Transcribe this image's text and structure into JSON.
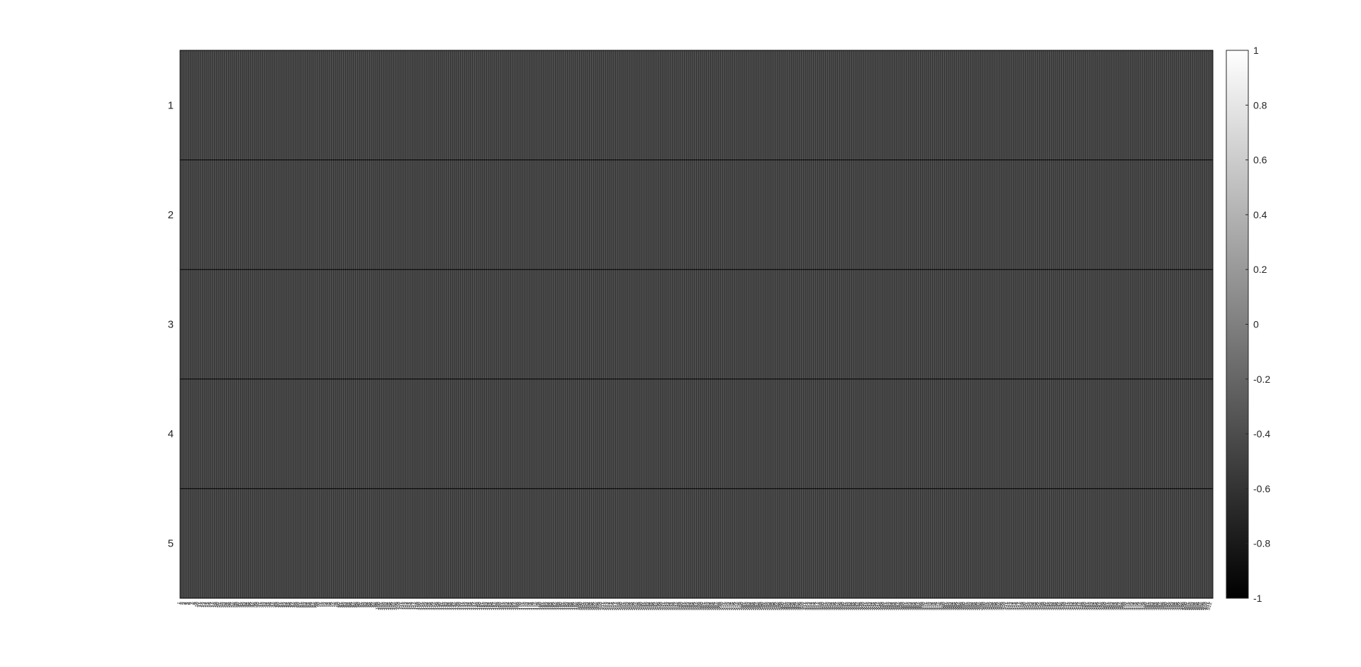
{
  "chart_data": {
    "type": "heatmap",
    "title": "",
    "xlabel": "",
    "ylabel": "",
    "rows": [
      "1",
      "2",
      "3",
      "4",
      "5"
    ],
    "column_count": 512,
    "column_values_estimate": -0.4,
    "colormap": "gray",
    "colorbar": {
      "range": [
        -1,
        1
      ],
      "ticks": [
        "-1",
        "-0.8",
        "-0.6",
        "-0.4",
        "-0.2",
        "0",
        "0.2",
        "0.4",
        "0.6",
        "0.8",
        "1"
      ]
    },
    "grid": true,
    "legend": "colorbar-right"
  },
  "colors": {
    "cell_fill": "#4d4d4d",
    "grid_line": "#000000",
    "axis_text": "#262626"
  }
}
